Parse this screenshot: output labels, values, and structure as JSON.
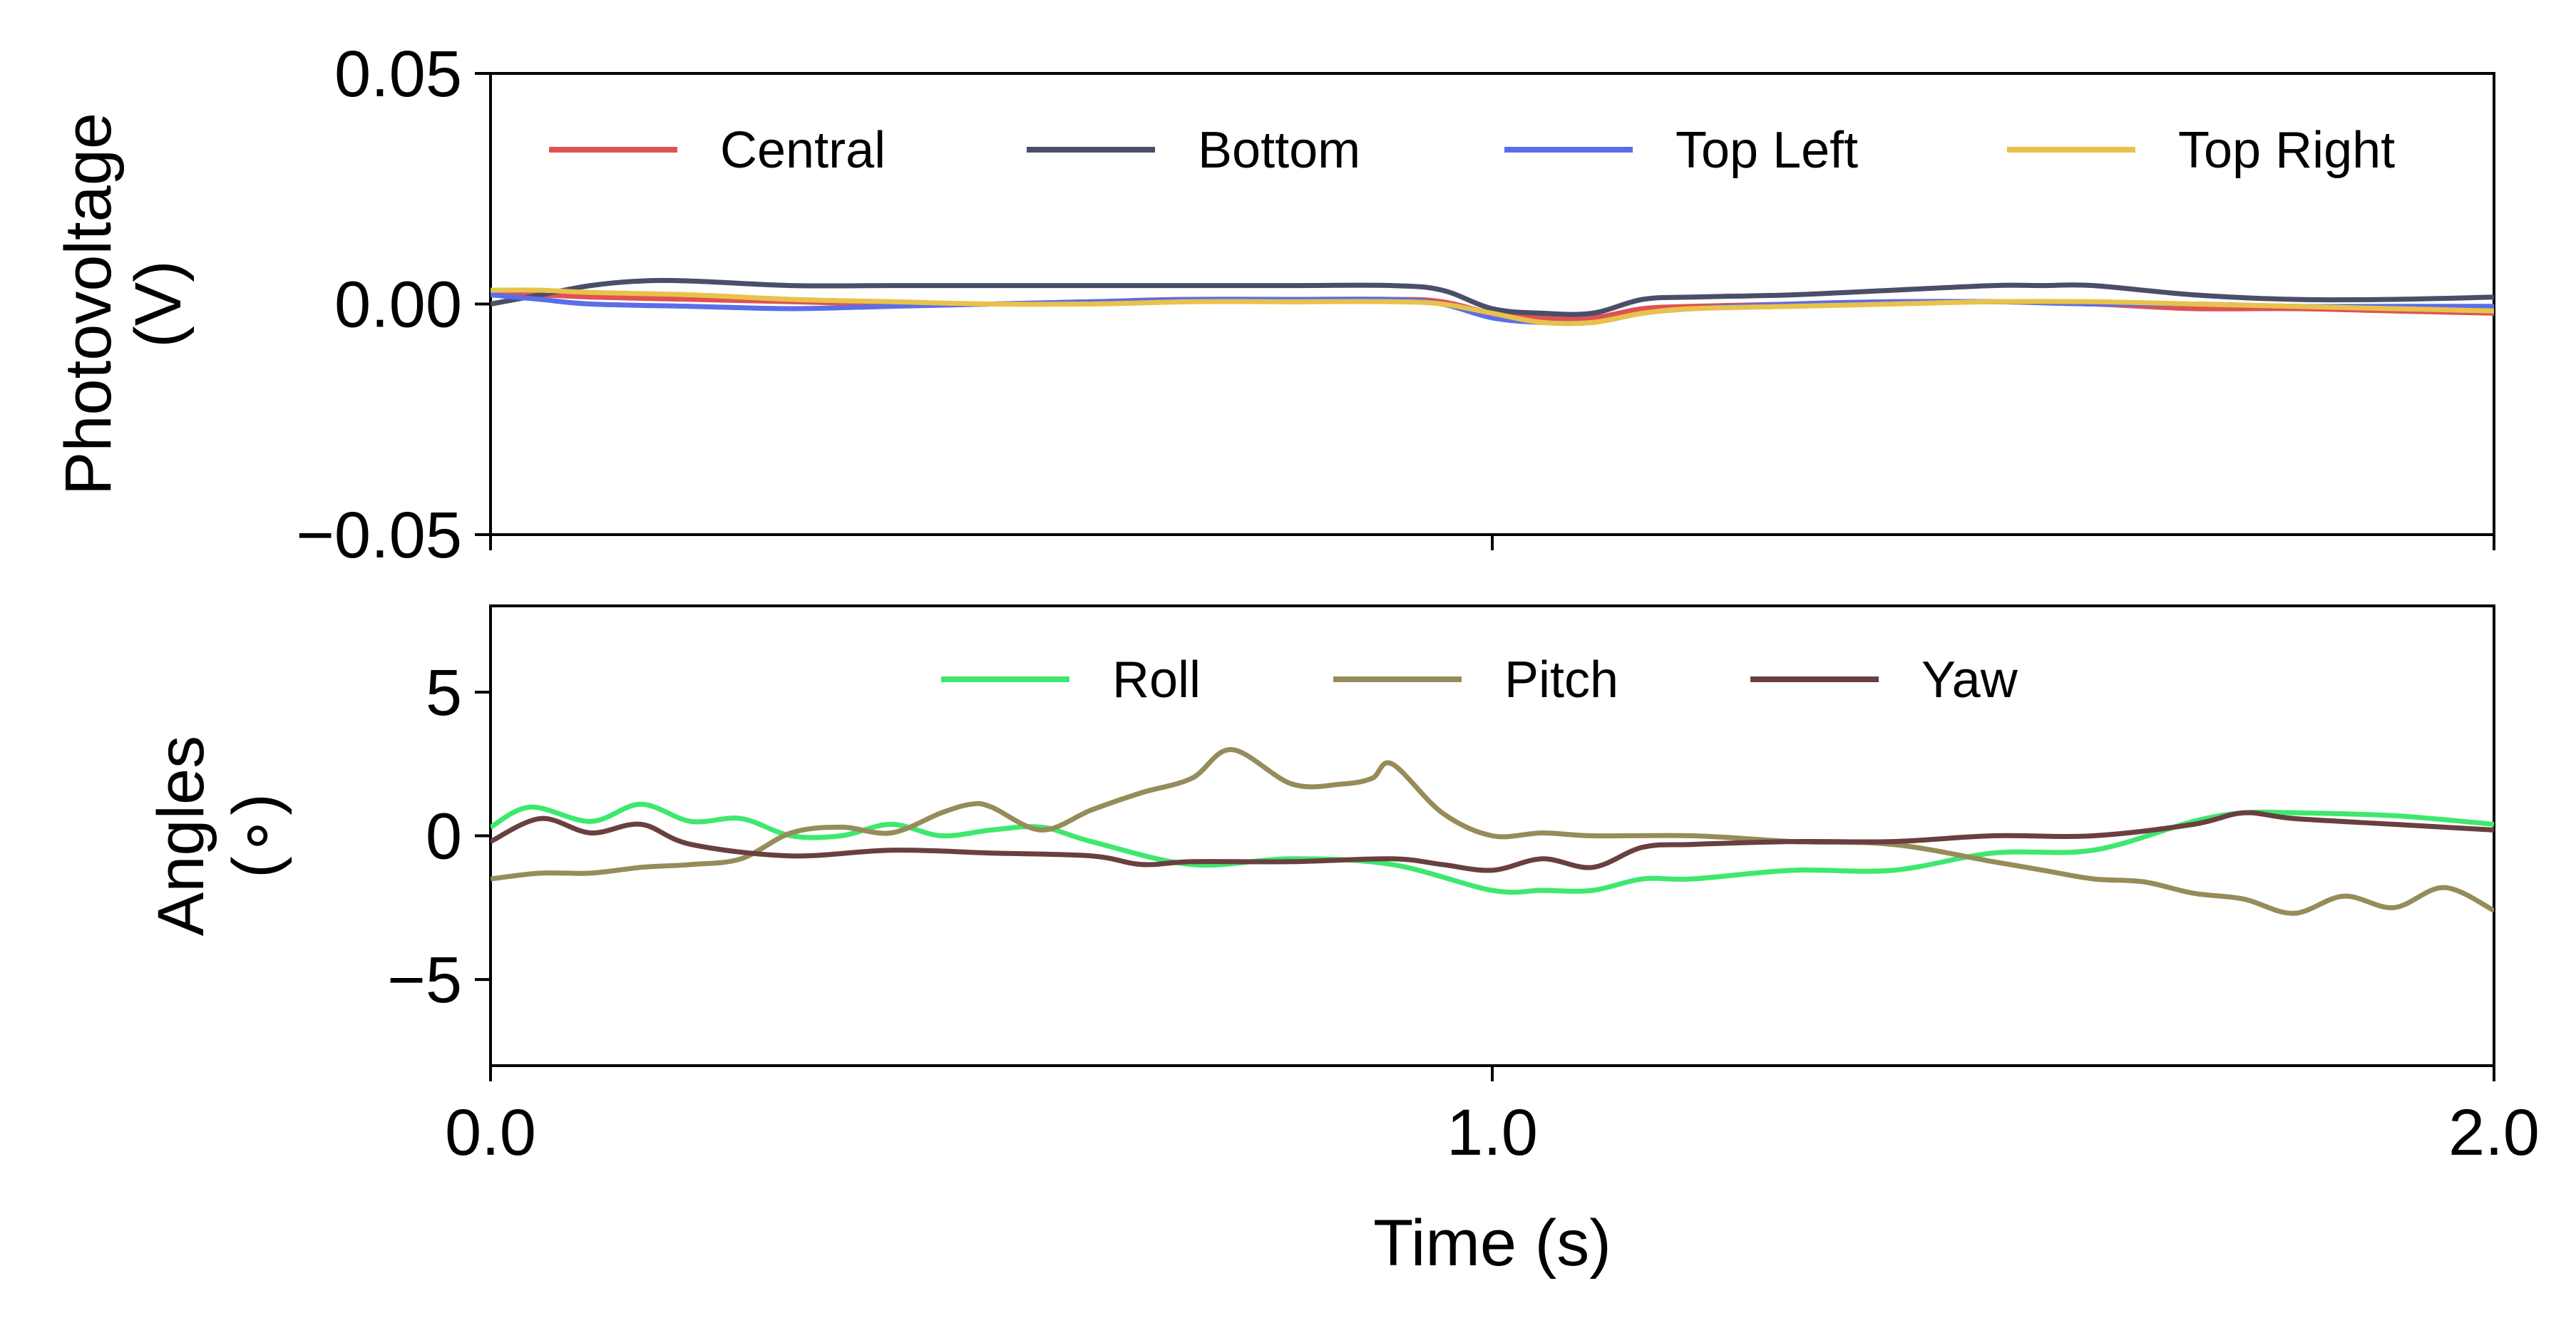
{
  "chart_data": [
    {
      "type": "line",
      "ylabel_lines": [
        "Photovoltage",
        "(V)"
      ],
      "xlim": [
        0,
        2
      ],
      "ylim": [
        -0.05,
        0.05
      ],
      "yticks": [
        0.05,
        0.0,
        -0.05
      ],
      "ytick_labels": [
        "0.05",
        "0.00",
        "−0.05"
      ],
      "xticks": [
        0,
        1,
        2
      ],
      "grid": false,
      "legend_placement": "top",
      "series": [
        {
          "name": "Central",
          "color": "#e05252",
          "x": [
            0,
            0.05,
            0.1,
            0.2,
            0.3,
            0.4,
            0.5,
            0.6,
            0.7,
            0.8,
            0.9,
            0.95,
            1.0,
            1.05,
            1.1,
            1.15,
            1.2,
            1.3,
            1.4,
            1.5,
            1.6,
            1.7,
            1.8,
            1.9,
            2.0
          ],
          "y": [
            0.002,
            0.002,
            0.0015,
            0.001,
            0.0005,
            0.0,
            0.0,
            0.0005,
            0.001,
            0.0005,
            0.001,
            0.0005,
            -0.002,
            -0.003,
            -0.003,
            -0.001,
            -0.0005,
            0.0,
            0.0005,
            0.0005,
            0.0,
            -0.001,
            -0.001,
            -0.0015,
            -0.002
          ]
        },
        {
          "name": "Bottom",
          "color": "#4a4e69",
          "x": [
            0,
            0.05,
            0.1,
            0.15,
            0.2,
            0.3,
            0.4,
            0.5,
            0.6,
            0.7,
            0.8,
            0.9,
            0.95,
            1.0,
            1.05,
            1.1,
            1.15,
            1.2,
            1.3,
            1.4,
            1.5,
            1.55,
            1.6,
            1.7,
            1.8,
            1.9,
            2.0
          ],
          "y": [
            0.0,
            0.002,
            0.004,
            0.005,
            0.005,
            0.004,
            0.004,
            0.004,
            0.004,
            0.004,
            0.004,
            0.004,
            0.003,
            -0.001,
            -0.002,
            -0.002,
            0.001,
            0.0015,
            0.002,
            0.003,
            0.004,
            0.004,
            0.004,
            0.002,
            0.001,
            0.001,
            0.0015
          ]
        },
        {
          "name": "Top Left",
          "color": "#5b6ee8",
          "x": [
            0,
            0.05,
            0.1,
            0.2,
            0.3,
            0.4,
            0.5,
            0.6,
            0.7,
            0.8,
            0.9,
            0.95,
            1.0,
            1.05,
            1.1,
            1.15,
            1.2,
            1.3,
            1.4,
            1.5,
            1.6,
            1.7,
            1.8,
            1.9,
            2.0
          ],
          "y": [
            0.002,
            0.001,
            0.0,
            -0.0005,
            -0.001,
            -0.0005,
            0.0,
            0.0005,
            0.001,
            0.001,
            0.001,
            0.0,
            -0.003,
            -0.004,
            -0.004,
            -0.002,
            -0.001,
            0.0,
            0.0005,
            0.0005,
            0.0,
            0.0,
            -0.0005,
            -0.0005,
            -0.0005
          ]
        },
        {
          "name": "Top Right",
          "color": "#e8c24a",
          "x": [
            0,
            0.05,
            0.1,
            0.2,
            0.3,
            0.4,
            0.5,
            0.6,
            0.7,
            0.8,
            0.9,
            0.95,
            1.0,
            1.05,
            1.1,
            1.15,
            1.2,
            1.3,
            1.4,
            1.5,
            1.6,
            1.7,
            1.8,
            1.9,
            2.0
          ],
          "y": [
            0.003,
            0.003,
            0.0025,
            0.002,
            0.001,
            0.0005,
            0.0,
            0.0,
            0.0005,
            0.0005,
            0.0005,
            0.0,
            -0.002,
            -0.004,
            -0.004,
            -0.002,
            -0.001,
            -0.0005,
            0.0,
            0.0005,
            0.0005,
            0.0,
            -0.0005,
            -0.001,
            -0.0015
          ]
        }
      ]
    },
    {
      "type": "line",
      "ylabel_lines": [
        "Angles",
        "(∘)"
      ],
      "xlabel": "Time (s)",
      "xlim": [
        0,
        2
      ],
      "ylim": [
        -8,
        8
      ],
      "yticks": [
        5,
        0,
        -5
      ],
      "ytick_labels": [
        "5",
        "0",
        "−5"
      ],
      "xticks": [
        0,
        1,
        2
      ],
      "xtick_labels": [
        "0.0",
        "1.0",
        "2.0"
      ],
      "grid": false,
      "legend_placement": "top-center",
      "series": [
        {
          "name": "Roll",
          "color": "#3ee86e",
          "x": [
            0,
            0.04,
            0.1,
            0.15,
            0.2,
            0.25,
            0.3,
            0.35,
            0.4,
            0.45,
            0.5,
            0.55,
            0.6,
            0.7,
            0.8,
            0.9,
            1.0,
            1.05,
            1.1,
            1.15,
            1.2,
            1.3,
            1.4,
            1.5,
            1.6,
            1.7,
            1.75,
            1.8,
            1.9,
            2.0
          ],
          "y": [
            0.3,
            1.0,
            0.5,
            1.1,
            0.5,
            0.6,
            0.0,
            0.0,
            0.4,
            0.0,
            0.2,
            0.3,
            -0.2,
            -1.0,
            -0.8,
            -1.0,
            -1.9,
            -1.9,
            -1.9,
            -1.5,
            -1.5,
            -1.2,
            -1.2,
            -0.6,
            -0.5,
            0.5,
            0.8,
            0.8,
            0.7,
            0.4
          ]
        },
        {
          "name": "Pitch",
          "color": "#968c5a",
          "x": [
            0,
            0.05,
            0.1,
            0.15,
            0.2,
            0.25,
            0.3,
            0.35,
            0.4,
            0.45,
            0.48,
            0.5,
            0.55,
            0.6,
            0.65,
            0.7,
            0.74,
            0.8,
            0.85,
            0.88,
            0.9,
            0.95,
            1.0,
            1.05,
            1.1,
            1.2,
            1.3,
            1.4,
            1.5,
            1.55,
            1.6,
            1.65,
            1.7,
            1.75,
            1.8,
            1.85,
            1.9,
            1.95,
            2.0
          ],
          "y": [
            -1.5,
            -1.3,
            -1.3,
            -1.1,
            -1.0,
            -0.8,
            0.1,
            0.3,
            0.1,
            0.8,
            1.1,
            1.0,
            0.2,
            0.9,
            1.5,
            2.0,
            3.0,
            1.8,
            1.8,
            2.0,
            2.5,
            0.8,
            0.0,
            0.1,
            0.0,
            0.0,
            -0.2,
            -0.3,
            -0.9,
            -1.2,
            -1.5,
            -1.6,
            -2.0,
            -2.2,
            -2.7,
            -2.1,
            -2.5,
            -1.8,
            -2.6
          ]
        },
        {
          "name": "Yaw",
          "color": "#6a3f3f",
          "x": [
            0,
            0.05,
            0.1,
            0.15,
            0.2,
            0.3,
            0.4,
            0.5,
            0.6,
            0.65,
            0.7,
            0.8,
            0.9,
            0.95,
            1.0,
            1.05,
            1.1,
            1.15,
            1.2,
            1.3,
            1.4,
            1.5,
            1.6,
            1.7,
            1.75,
            1.8,
            1.9,
            2.0
          ],
          "y": [
            -0.2,
            0.6,
            0.1,
            0.4,
            -0.3,
            -0.7,
            -0.5,
            -0.6,
            -0.7,
            -1.0,
            -0.9,
            -0.9,
            -0.8,
            -1.0,
            -1.2,
            -0.8,
            -1.1,
            -0.4,
            -0.3,
            -0.2,
            -0.2,
            0.0,
            0.0,
            0.4,
            0.8,
            0.6,
            0.4,
            0.2
          ]
        }
      ]
    }
  ]
}
